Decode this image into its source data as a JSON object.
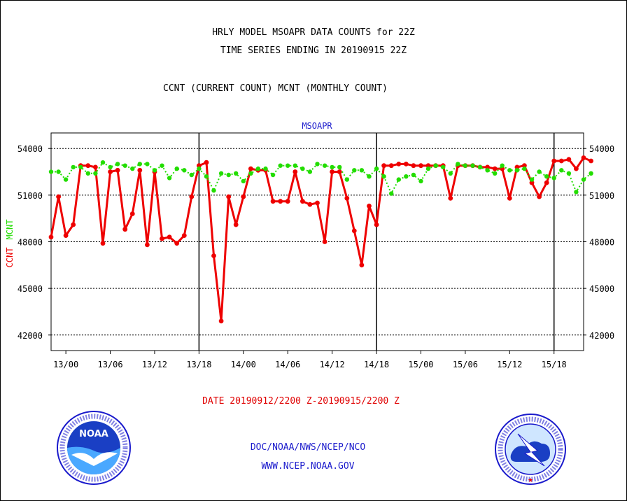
{
  "header": {
    "title_line1": "HRLY MODEL MSOAPR DATA COUNTS for 22Z",
    "title_line2": "TIME SERIES ENDING IN 20190915 22Z",
    "subtitle": "CCNT (CURRENT COUNT) MCNT (MONTHLY COUNT)"
  },
  "footer": {
    "date_range": "DATE 20190912/2200 Z-20190915/2200 Z",
    "credit_line1": "DOC/NOAA/NWS/NCEP/NCO",
    "credit_line2": "WWW.NCEP.NOAA.GOV"
  },
  "logos": {
    "left": "NOAA",
    "right": "NATIONAL WEATHER SERVICE"
  },
  "colors": {
    "ccnt": "#ee0000",
    "mcnt": "#22dd00",
    "plot_label": "#1a1acc"
  },
  "chart_data": {
    "type": "line",
    "title": "MSOAPR",
    "ylabel_series": [
      "CCNT",
      "MCNT"
    ],
    "ylim": [
      41000,
      55000
    ],
    "yticks": [
      42000,
      45000,
      48000,
      51000,
      54000
    ],
    "xticks": [
      {
        "hour": 2,
        "label": "13/00"
      },
      {
        "hour": 8,
        "label": "13/06"
      },
      {
        "hour": 14,
        "label": "13/12"
      },
      {
        "hour": 20,
        "label": "13/18"
      },
      {
        "hour": 26,
        "label": "14/00"
      },
      {
        "hour": 32,
        "label": "14/06"
      },
      {
        "hour": 38,
        "label": "14/12"
      },
      {
        "hour": 44,
        "label": "14/18"
      },
      {
        "hour": 50,
        "label": "15/00"
      },
      {
        "hour": 56,
        "label": "15/06"
      },
      {
        "hour": 62,
        "label": "15/12"
      },
      {
        "hour": 68,
        "label": "15/18"
      }
    ],
    "xlim": [
      0,
      72
    ],
    "day_lines": [
      20,
      44,
      68
    ],
    "grid": true,
    "series": [
      {
        "name": "CCNT",
        "color": "#ee0000",
        "values": [
          48300,
          50900,
          48400,
          49100,
          52900,
          52900,
          52800,
          47900,
          52500,
          52600,
          48800,
          49800,
          52600,
          47800,
          52500,
          48200,
          48300,
          47900,
          48400,
          50900,
          52900,
          53100,
          47100,
          42900,
          50900,
          49100,
          50900,
          52700,
          52600,
          52600,
          50600,
          50600,
          50600,
          52500,
          50600,
          50400,
          50500,
          48000,
          52500,
          52500,
          50800,
          48700,
          46500,
          50300,
          49100,
          52900,
          52900,
          53000,
          53000,
          52900,
          52900,
          52900,
          52900,
          52900,
          50800,
          52900,
          52900,
          52900,
          52800,
          52800,
          52700,
          52700,
          50800,
          52800,
          52900,
          51800,
          50900,
          51800,
          53200,
          53200,
          53300,
          52700,
          53400,
          53200
        ]
      },
      {
        "name": "MCNT",
        "color": "#22dd00",
        "values": [
          52500,
          52500,
          52000,
          52800,
          52800,
          52400,
          52400,
          53100,
          52800,
          53000,
          52900,
          52700,
          53000,
          53000,
          52600,
          52900,
          52100,
          52700,
          52600,
          52300,
          52700,
          52200,
          51300,
          52400,
          52300,
          52400,
          51900,
          52400,
          52700,
          52700,
          52300,
          52900,
          52900,
          52900,
          52700,
          52500,
          53000,
          52900,
          52800,
          52800,
          52000,
          52600,
          52600,
          52200,
          52700,
          52200,
          51100,
          52000,
          52200,
          52300,
          51900,
          52700,
          52900,
          52800,
          52400,
          53000,
          52900,
          52900,
          52800,
          52600,
          52400,
          52900,
          52600,
          52600,
          52700,
          52000,
          52500,
          52200,
          52100,
          52600,
          52400,
          51200,
          52000,
          52400
        ]
      }
    ]
  }
}
